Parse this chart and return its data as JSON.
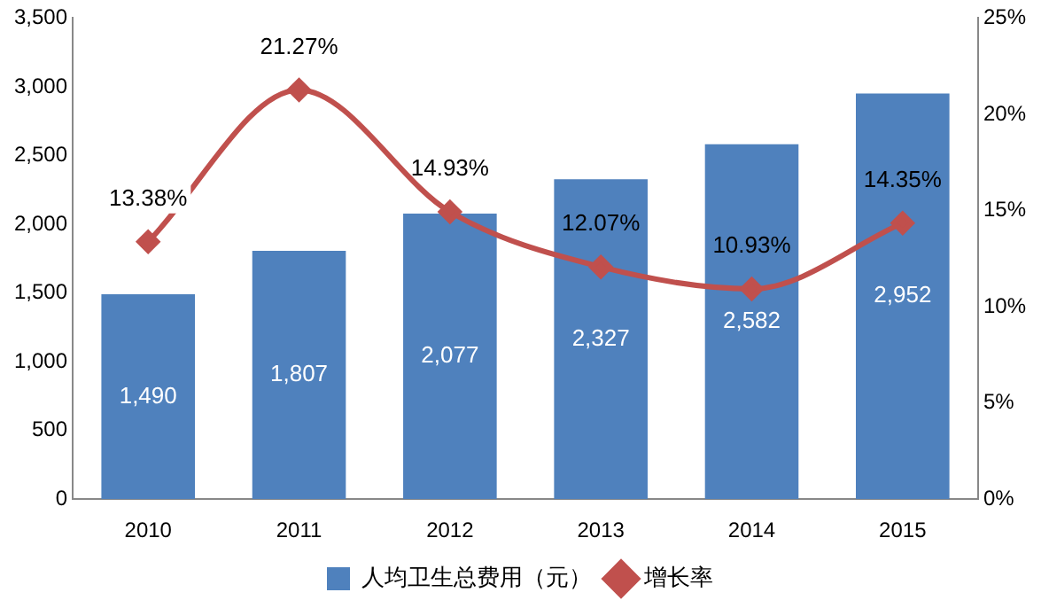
{
  "chart_data": {
    "type": "bar",
    "categories": [
      "2010",
      "2011",
      "2012",
      "2013",
      "2014",
      "2015"
    ],
    "series": [
      {
        "name": "人均卫生总费用（元）",
        "color": "#4f81bd",
        "values": [
          1490,
          1807,
          2077,
          2327,
          2582,
          2952
        ],
        "value_labels": [
          "1,490",
          "1,807",
          "2,077",
          "2,327",
          "2,582",
          "2,952"
        ]
      },
      {
        "name": "增长率",
        "type": "line",
        "axis": "y2",
        "color": "#c0504d",
        "values": [
          13.38,
          21.27,
          14.93,
          12.07,
          10.93,
          14.35
        ],
        "value_labels": [
          "13.38%",
          "21.27%",
          "14.93%",
          "12.07%",
          "10.93%",
          "14.35%"
        ],
        "marker": "diamond"
      }
    ],
    "ylim": [
      0,
      3500
    ],
    "yticks": [
      0,
      500,
      {
        "value": 1000,
        "label": "1,000"
      },
      {
        "value": 1500,
        "label": "1,500"
      },
      {
        "value": 2000,
        "label": "2,000"
      },
      {
        "value": 2500,
        "label": "2,500"
      },
      {
        "value": 3000,
        "label": "3,000"
      },
      {
        "value": 3500,
        "label": "3,500"
      }
    ],
    "y2lim": [
      0,
      25
    ],
    "y2ticks": [
      {
        "value": 0,
        "label": "0%"
      },
      {
        "value": 5,
        "label": "5%"
      },
      {
        "value": 10,
        "label": "10%"
      },
      {
        "value": 15,
        "label": "15%"
      },
      {
        "value": 20,
        "label": "20%"
      },
      {
        "value": 25,
        "label": "25%"
      }
    ],
    "grid": false,
    "legend": "bottom"
  }
}
